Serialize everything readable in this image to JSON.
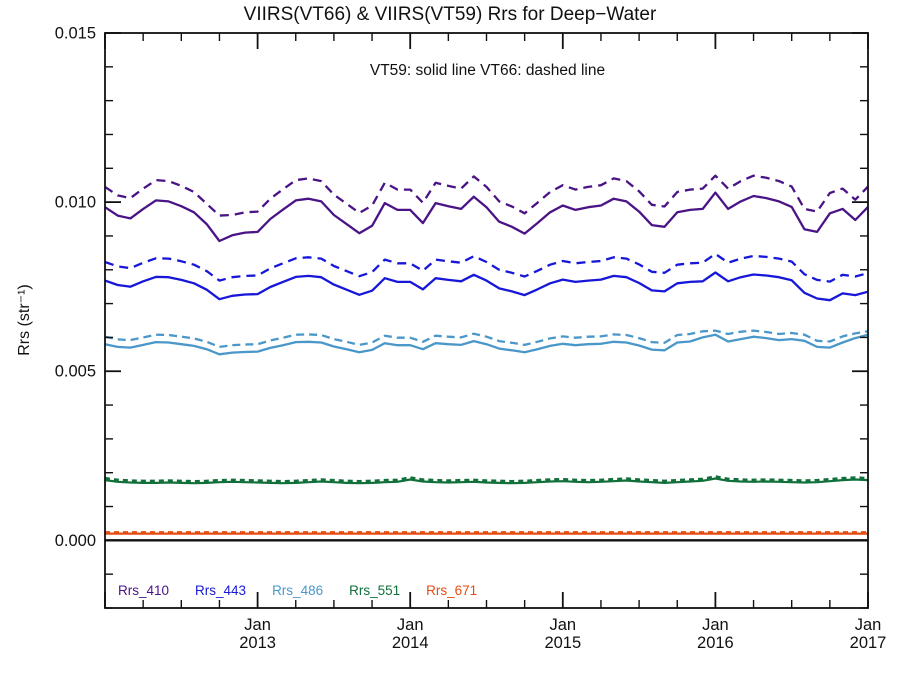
{
  "chart_data": {
    "type": "line",
    "title": "VIIRS(VT66) & VIIRS(VT59)  Rrs for Deep−Water",
    "annotation": "VT59: solid line   VT66: dashed line",
    "ylabel": "Rrs (str⁻¹)",
    "x_range_months": 60,
    "x_start": "Jan 2012",
    "x_minor_tick_interval_months": 3,
    "ylim": [
      -0.002,
      0.015
    ],
    "y_minor_tick_interval": 0.001,
    "grid": "off",
    "zero_line": true,
    "axis_color": "#111111",
    "values_scale": 0.001,
    "y_ticks": [
      {
        "value": 0.0,
        "label": "0.000"
      },
      {
        "value": 0.005,
        "label": "0.005"
      },
      {
        "value": 0.01,
        "label": "0.010"
      },
      {
        "value": 0.015,
        "label": "0.015"
      }
    ],
    "x_ticks": [
      {
        "month_index": 12,
        "line1": "Jan",
        "line2": "2013"
      },
      {
        "month_index": 24,
        "line1": "Jan",
        "line2": "2014"
      },
      {
        "month_index": 36,
        "line1": "Jan",
        "line2": "2015"
      },
      {
        "month_index": 48,
        "line1": "Jan",
        "line2": "2016"
      },
      {
        "month_index": 60,
        "line1": "Jan",
        "line2": "2017"
      }
    ],
    "legend": [
      {
        "label": "Rrs_410",
        "color": "#4a1486"
      },
      {
        "label": "Rrs_443",
        "color": "#1717d9"
      },
      {
        "label": "Rrs_486",
        "color": "#4a97c9"
      },
      {
        "label": "Rrs_551",
        "color": "#11703a"
      },
      {
        "label": "Rrs_671",
        "color": "#e54e10"
      }
    ],
    "series": [
      {
        "name": "Rrs_410 VT59",
        "style": "solid",
        "color": "#4a1486",
        "dash": null,
        "width": 2.3,
        "values": [
          9.85,
          9.6,
          9.52,
          9.8,
          10.05,
          10.02,
          9.88,
          9.7,
          9.35,
          8.85,
          9.02,
          9.1,
          9.12,
          9.5,
          9.78,
          10.05,
          10.1,
          10.02,
          9.62,
          9.35,
          9.08,
          9.3,
          9.97,
          9.77,
          9.77,
          9.38,
          9.97,
          9.88,
          9.8,
          10.16,
          9.85,
          9.42,
          9.27,
          9.07,
          9.38,
          9.7,
          9.9,
          9.77,
          9.85,
          9.9,
          10.1,
          10.02,
          9.72,
          9.32,
          9.27,
          9.7,
          9.77,
          9.8,
          10.28,
          9.8,
          10.02,
          10.18,
          10.12,
          10.02,
          9.86,
          9.2,
          9.12,
          9.67,
          9.8,
          9.47,
          9.86
        ]
      },
      {
        "name": "Rrs_410 VT66",
        "style": "dashed",
        "color": "#4a1486",
        "dash": "9,6",
        "width": 2.3,
        "values": [
          10.45,
          10.2,
          10.12,
          10.4,
          10.65,
          10.62,
          10.48,
          10.3,
          9.95,
          9.6,
          9.62,
          9.7,
          9.72,
          10.1,
          10.38,
          10.65,
          10.7,
          10.62,
          10.22,
          9.95,
          9.68,
          9.9,
          10.57,
          10.37,
          10.37,
          9.98,
          10.57,
          10.48,
          10.4,
          10.76,
          10.45,
          10.02,
          9.87,
          9.67,
          9.98,
          10.3,
          10.5,
          10.37,
          10.45,
          10.5,
          10.7,
          10.62,
          10.32,
          9.92,
          9.87,
          10.3,
          10.37,
          10.4,
          10.78,
          10.4,
          10.62,
          10.78,
          10.72,
          10.62,
          10.46,
          9.8,
          9.72,
          10.27,
          10.4,
          10.07,
          10.46
        ]
      },
      {
        "name": "Rrs_443 VT59",
        "style": "solid",
        "color": "#1717d9",
        "dash": null,
        "width": 2.3,
        "values": [
          7.68,
          7.55,
          7.5,
          7.66,
          7.79,
          7.78,
          7.7,
          7.6,
          7.41,
          7.13,
          7.23,
          7.27,
          7.28,
          7.49,
          7.64,
          7.79,
          7.82,
          7.78,
          7.56,
          7.41,
          7.26,
          7.38,
          7.75,
          7.64,
          7.64,
          7.42,
          7.75,
          7.7,
          7.66,
          7.85,
          7.68,
          7.45,
          7.36,
          7.25,
          7.42,
          7.6,
          7.71,
          7.64,
          7.68,
          7.71,
          7.82,
          7.78,
          7.61,
          7.39,
          7.36,
          7.6,
          7.64,
          7.66,
          7.92,
          7.66,
          7.78,
          7.86,
          7.83,
          7.78,
          7.69,
          7.32,
          7.15,
          7.1,
          7.3,
          7.25,
          7.35
        ]
      },
      {
        "name": "Rrs_443 VT66",
        "style": "dashed",
        "color": "#1717d9",
        "dash": "9,6",
        "width": 2.3,
        "values": [
          8.23,
          8.1,
          8.05,
          8.21,
          8.34,
          8.33,
          8.25,
          8.15,
          7.96,
          7.68,
          7.78,
          7.82,
          7.83,
          8.04,
          8.19,
          8.34,
          8.37,
          8.33,
          8.11,
          7.96,
          7.81,
          7.93,
          8.3,
          8.19,
          8.19,
          7.97,
          8.3,
          8.25,
          8.21,
          8.4,
          8.23,
          8.0,
          7.91,
          7.8,
          7.97,
          8.15,
          8.26,
          8.19,
          8.23,
          8.26,
          8.37,
          8.33,
          8.16,
          7.94,
          7.91,
          8.15,
          8.19,
          8.21,
          8.47,
          8.21,
          8.33,
          8.41,
          8.38,
          8.33,
          8.24,
          7.87,
          7.7,
          7.65,
          7.85,
          7.8,
          7.9
        ]
      },
      {
        "name": "Rrs_486 VT59",
        "style": "solid",
        "color": "#4a97c9",
        "dash": null,
        "width": 2.3,
        "values": [
          5.8,
          5.72,
          5.7,
          5.78,
          5.86,
          5.85,
          5.8,
          5.75,
          5.65,
          5.5,
          5.55,
          5.57,
          5.58,
          5.69,
          5.77,
          5.86,
          5.87,
          5.85,
          5.73,
          5.65,
          5.56,
          5.63,
          5.83,
          5.77,
          5.77,
          5.65,
          5.83,
          5.8,
          5.78,
          5.89,
          5.8,
          5.67,
          5.62,
          5.56,
          5.65,
          5.75,
          5.81,
          5.77,
          5.8,
          5.81,
          5.87,
          5.85,
          5.76,
          5.64,
          5.62,
          5.85,
          5.88,
          6.0,
          6.08,
          5.88,
          5.95,
          6.02,
          5.98,
          5.92,
          5.95,
          5.9,
          5.72,
          5.7,
          5.85,
          5.98,
          6.08
        ]
      },
      {
        "name": "Rrs_486 VT66",
        "style": "dashed",
        "color": "#4a97c9",
        "dash": "8,5",
        "width": 2.3,
        "values": [
          6.02,
          5.94,
          5.92,
          6.0,
          6.08,
          6.07,
          6.02,
          5.97,
          5.87,
          5.72,
          5.77,
          5.79,
          5.8,
          5.91,
          5.99,
          6.08,
          6.09,
          6.07,
          5.95,
          5.87,
          5.78,
          5.85,
          6.05,
          5.99,
          5.99,
          5.87,
          6.05,
          6.02,
          6.0,
          6.11,
          6.02,
          5.89,
          5.84,
          5.78,
          5.87,
          5.97,
          6.03,
          5.99,
          6.02,
          6.03,
          6.09,
          6.07,
          5.98,
          5.86,
          5.84,
          6.07,
          6.1,
          6.18,
          6.2,
          6.1,
          6.17,
          6.2,
          6.16,
          6.1,
          6.13,
          6.08,
          5.9,
          5.88,
          6.03,
          6.12,
          6.18
        ]
      },
      {
        "name": "Rrs_551 VT59",
        "style": "solid",
        "color": "#11703a",
        "dash": null,
        "width": 2.2,
        "values": [
          1.78,
          1.73,
          1.71,
          1.7,
          1.7,
          1.71,
          1.7,
          1.69,
          1.7,
          1.72,
          1.73,
          1.72,
          1.71,
          1.7,
          1.69,
          1.7,
          1.72,
          1.74,
          1.72,
          1.7,
          1.69,
          1.7,
          1.72,
          1.73,
          1.8,
          1.74,
          1.72,
          1.71,
          1.72,
          1.73,
          1.71,
          1.7,
          1.69,
          1.7,
          1.72,
          1.74,
          1.75,
          1.73,
          1.72,
          1.73,
          1.75,
          1.77,
          1.74,
          1.72,
          1.7,
          1.72,
          1.74,
          1.76,
          1.83,
          1.76,
          1.74,
          1.73,
          1.74,
          1.73,
          1.72,
          1.71,
          1.72,
          1.75,
          1.78,
          1.8,
          1.78
        ]
      },
      {
        "name": "Rrs_551 VT66",
        "style": "dashed",
        "color": "#11703a",
        "dash": "5,4",
        "width": 2.4,
        "values": [
          1.84,
          1.79,
          1.77,
          1.76,
          1.76,
          1.77,
          1.76,
          1.75,
          1.76,
          1.78,
          1.79,
          1.78,
          1.77,
          1.76,
          1.75,
          1.76,
          1.78,
          1.8,
          1.78,
          1.76,
          1.75,
          1.76,
          1.78,
          1.79,
          1.86,
          1.8,
          1.78,
          1.77,
          1.78,
          1.79,
          1.77,
          1.76,
          1.75,
          1.76,
          1.78,
          1.8,
          1.81,
          1.79,
          1.78,
          1.79,
          1.81,
          1.83,
          1.8,
          1.78,
          1.76,
          1.78,
          1.8,
          1.82,
          1.89,
          1.82,
          1.8,
          1.79,
          1.8,
          1.79,
          1.78,
          1.77,
          1.78,
          1.81,
          1.84,
          1.86,
          1.84
        ]
      },
      {
        "name": "Rrs_671 VT59",
        "style": "solid",
        "color": "#e54e10",
        "dash": null,
        "width": 2.2,
        "values": [
          0.2,
          0.2,
          0.2,
          0.2,
          0.2,
          0.2,
          0.2,
          0.2,
          0.2,
          0.2,
          0.2,
          0.2,
          0.2,
          0.2,
          0.2,
          0.2,
          0.2,
          0.2,
          0.2,
          0.2,
          0.2,
          0.2,
          0.2,
          0.2,
          0.2,
          0.2,
          0.2,
          0.2,
          0.2,
          0.2,
          0.2,
          0.2,
          0.2,
          0.2,
          0.2,
          0.2,
          0.2,
          0.2,
          0.2,
          0.2,
          0.2,
          0.2,
          0.2,
          0.2,
          0.2,
          0.2,
          0.2,
          0.2,
          0.2,
          0.2,
          0.2,
          0.2,
          0.2,
          0.2,
          0.2,
          0.2,
          0.2,
          0.2,
          0.2,
          0.2,
          0.2
        ]
      },
      {
        "name": "Rrs_671 VT66",
        "style": "dashed",
        "color": "#e54e10",
        "dash": "5,4",
        "width": 2.2,
        "values": [
          0.24,
          0.24,
          0.24,
          0.24,
          0.24,
          0.24,
          0.24,
          0.24,
          0.24,
          0.24,
          0.24,
          0.24,
          0.24,
          0.24,
          0.24,
          0.24,
          0.24,
          0.24,
          0.24,
          0.24,
          0.24,
          0.24,
          0.24,
          0.24,
          0.24,
          0.24,
          0.24,
          0.24,
          0.24,
          0.24,
          0.24,
          0.24,
          0.24,
          0.24,
          0.24,
          0.24,
          0.24,
          0.24,
          0.24,
          0.24,
          0.24,
          0.24,
          0.24,
          0.24,
          0.24,
          0.24,
          0.24,
          0.24,
          0.24,
          0.24,
          0.24,
          0.24,
          0.24,
          0.24,
          0.24,
          0.24,
          0.24,
          0.24,
          0.24,
          0.24,
          0.24
        ]
      }
    ]
  }
}
